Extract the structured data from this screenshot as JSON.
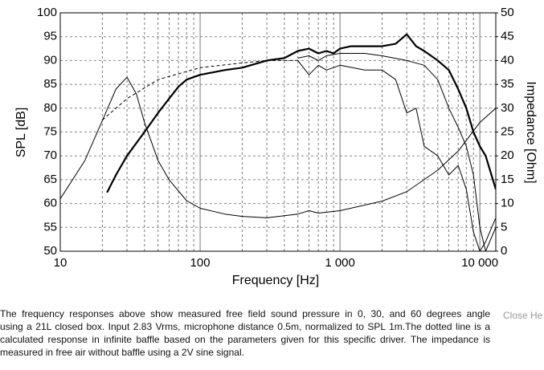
{
  "chart_data": {
    "type": "line",
    "xlabel": "Frequency [Hz]",
    "ylabel": "SPL [dB]",
    "y2label": "Impedance [Ohm]",
    "xscale": "log",
    "xlim": [
      10,
      13000
    ],
    "xticks": [
      10,
      100,
      {
        "value": 1000,
        "label": "1 000"
      },
      {
        "value": 10000,
        "label": "10 000"
      }
    ],
    "xminorticks": [
      20,
      30,
      40,
      50,
      60,
      70,
      80,
      90,
      200,
      300,
      400,
      500,
      600,
      700,
      800,
      900,
      2000,
      3000,
      4000,
      5000,
      6000,
      7000,
      8000,
      9000
    ],
    "ylim": [
      50,
      100
    ],
    "yticks": [
      50,
      55,
      60,
      65,
      70,
      75,
      80,
      85,
      90,
      95,
      100
    ],
    "y2lim": [
      0,
      50
    ],
    "y2ticks": [
      0,
      5,
      10,
      15,
      20,
      25,
      30,
      35,
      40,
      45,
      50
    ],
    "grid": true,
    "series": [
      {
        "color": "#000000",
        "line_width": 2.2,
        "dash": false,
        "x": [
          21.6,
          25,
          30,
          40,
          50,
          60,
          70,
          80,
          100,
          150,
          200,
          300,
          400,
          500,
          600,
          700,
          800,
          900,
          1000,
          1200,
          1500,
          2000,
          2500,
          3000,
          3500,
          4000,
          5000,
          6000,
          7000,
          8000,
          9000,
          10000,
          11000,
          13000
        ],
        "values": [
          62.3,
          66,
          70,
          75,
          79,
          82,
          84.5,
          86,
          87,
          88,
          88.5,
          90,
          90.5,
          92,
          92.5,
          91.5,
          92,
          91.5,
          92.5,
          93,
          93,
          93,
          93.5,
          95.5,
          93,
          92,
          90,
          88,
          84,
          80,
          75,
          72,
          70,
          63
        ]
      },
      {
        "color": "#000000",
        "line_width": 1,
        "dash": false,
        "x": [
          500,
          600,
          700,
          800,
          1000,
          1500,
          2000,
          3000,
          4000,
          5000,
          6000,
          7000,
          8000,
          9000,
          10000,
          11000,
          13000
        ],
        "values": [
          90.5,
          91,
          90,
          91,
          91.5,
          91.5,
          91,
          90,
          89,
          86,
          80,
          76,
          72,
          66,
          55,
          50,
          55
        ]
      },
      {
        "color": "#000000",
        "line_width": 1,
        "dash": false,
        "x": [
          500,
          600,
          700,
          800,
          1000,
          1500,
          2000,
          2500,
          3000,
          3500,
          4000,
          5000,
          6000,
          7000,
          8000,
          9000,
          10000,
          11000,
          13000
        ],
        "values": [
          90,
          87,
          89,
          88,
          89,
          88,
          88,
          86,
          79,
          80,
          72,
          70,
          66,
          68,
          63,
          54,
          50,
          52,
          57
        ]
      },
      {
        "color": "#000000",
        "line_width": 1,
        "dash": true,
        "x": [
          20,
          30,
          50,
          100,
          200,
          300,
          500
        ],
        "values": [
          77.5,
          82,
          86,
          88.5,
          89.5,
          90,
          90
        ]
      },
      {
        "color": "#000000",
        "line_width": 1,
        "dash": false,
        "axis": "y2",
        "x": [
          10,
          15,
          20,
          25,
          30,
          35,
          40,
          50,
          60,
          80,
          100,
          150,
          200,
          300,
          500,
          600,
          700,
          1000,
          2000,
          3000,
          5000,
          7000,
          10000,
          13000
        ],
        "values": [
          11,
          19,
          27.4,
          34,
          36.5,
          33,
          27,
          19,
          15,
          10.6,
          9,
          7.8,
          7.3,
          7,
          7.8,
          8.5,
          8,
          8.5,
          10.5,
          12.5,
          17,
          21,
          27,
          30
        ]
      }
    ]
  },
  "caption": {
    "lines": [
      "The frequency responses above show measured free field sound pressure in 0, 30, and 60 degrees angle",
      "using a 21L closed box. Input 2.83 Vrms, microphone distance 0.5m, normalized to SPL 1m.The dotted line is a",
      "calculated response in infinite baffle based on the parameters given for this specific driver. The impedance is",
      "measured in free air without baffle using a 2V sine signal."
    ],
    "close": "Close He"
  }
}
